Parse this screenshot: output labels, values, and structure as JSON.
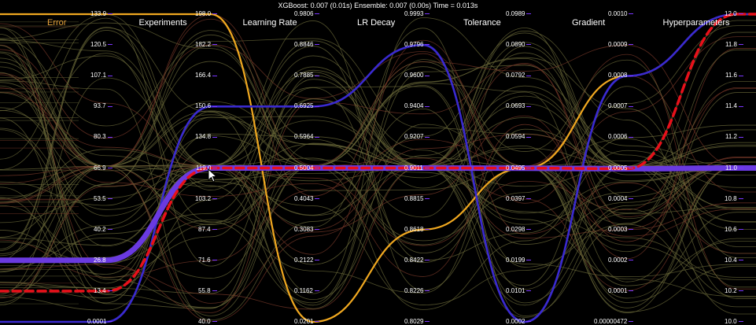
{
  "status_text": "XGBoost: 0.007 (0.01s) Ensemble: 0.007 (0.00s) Time = 0.013s",
  "axes": [
    {
      "title": "Error",
      "active": true,
      "ticks": [
        "133.9",
        "120.5",
        "107.1",
        "93.7",
        "80.3",
        "66.9",
        "53.5",
        "40.2",
        "26.8",
        "13.4",
        "0.0001"
      ]
    },
    {
      "title": "Experiments",
      "active": false,
      "ticks": [
        "198.0",
        "182.2",
        "166.4",
        "150.6",
        "134.8",
        "119.0",
        "103.2",
        "87.4",
        "71.6",
        "55.8",
        "40.0"
      ]
    },
    {
      "title": "Learning Rate",
      "active": false,
      "ticks": [
        "0.9806",
        "0.8846",
        "0.7885",
        "0.6925",
        "0.5964",
        "0.5004",
        "0.4043",
        "0.3083",
        "0.2122",
        "0.1162",
        "0.0201"
      ]
    },
    {
      "title": "LR Decay",
      "active": false,
      "ticks": [
        "0.9993",
        "0.9796",
        "0.9600",
        "0.9404",
        "0.9207",
        "0.9011",
        "0.8815",
        "0.8618",
        "0.8422",
        "0.8226",
        "0.8029"
      ]
    },
    {
      "title": "Tolerance",
      "active": false,
      "ticks": [
        "0.0989",
        "0.0890",
        "0.0792",
        "0.0693",
        "0.0594",
        "0.0495",
        "0.0397",
        "0.0298",
        "0.0199",
        "0.0101",
        "0.0002"
      ]
    },
    {
      "title": "Gradient",
      "active": false,
      "ticks": [
        "0.0010",
        "0.0009",
        "0.0008",
        "0.0007",
        "0.0006",
        "0.0005",
        "0.0004",
        "0.0003",
        "0.0002",
        "0.0001",
        "0.00000472"
      ]
    },
    {
      "title": "Hyperparameters",
      "active": false,
      "ticks": [
        "12.0",
        "11.8",
        "11.6",
        "11.4",
        "11.2",
        "11.0",
        "10.8",
        "10.6",
        "10.4",
        "10.2",
        "10.0"
      ]
    }
  ],
  "colors": {
    "background": "#000000",
    "background_lines": "#6b6a3a",
    "background_lines_red": "#7a3a2a",
    "highlight_orange": "#f0a820",
    "highlight_blue": "#3a2ad0",
    "highlight_purple": "#6a3ae0",
    "highlight_red": "#e8101a",
    "tick_marker": "#7a36ff",
    "active_axis_title": "#e8a33c"
  },
  "highlighted_lines": [
    {
      "id": "orange",
      "values": [
        133.9,
        198.0,
        0.0201,
        0.8618,
        0.0495,
        0.0008,
        12.0
      ]
    },
    {
      "id": "blue",
      "values": [
        0.0001,
        150.6,
        0.6925,
        0.9796,
        0.0002,
        0.0008,
        12.0
      ]
    },
    {
      "id": "purple",
      "values": [
        26.8,
        119.0,
        0.5004,
        0.9011,
        0.0495,
        0.0005,
        11.0
      ]
    },
    {
      "id": "red-dashed",
      "values": [
        13.4,
        119.0,
        0.5004,
        0.9011,
        0.0495,
        0.0005,
        12.0
      ]
    }
  ],
  "cursor_icon": "arrow-cursor-icon"
}
